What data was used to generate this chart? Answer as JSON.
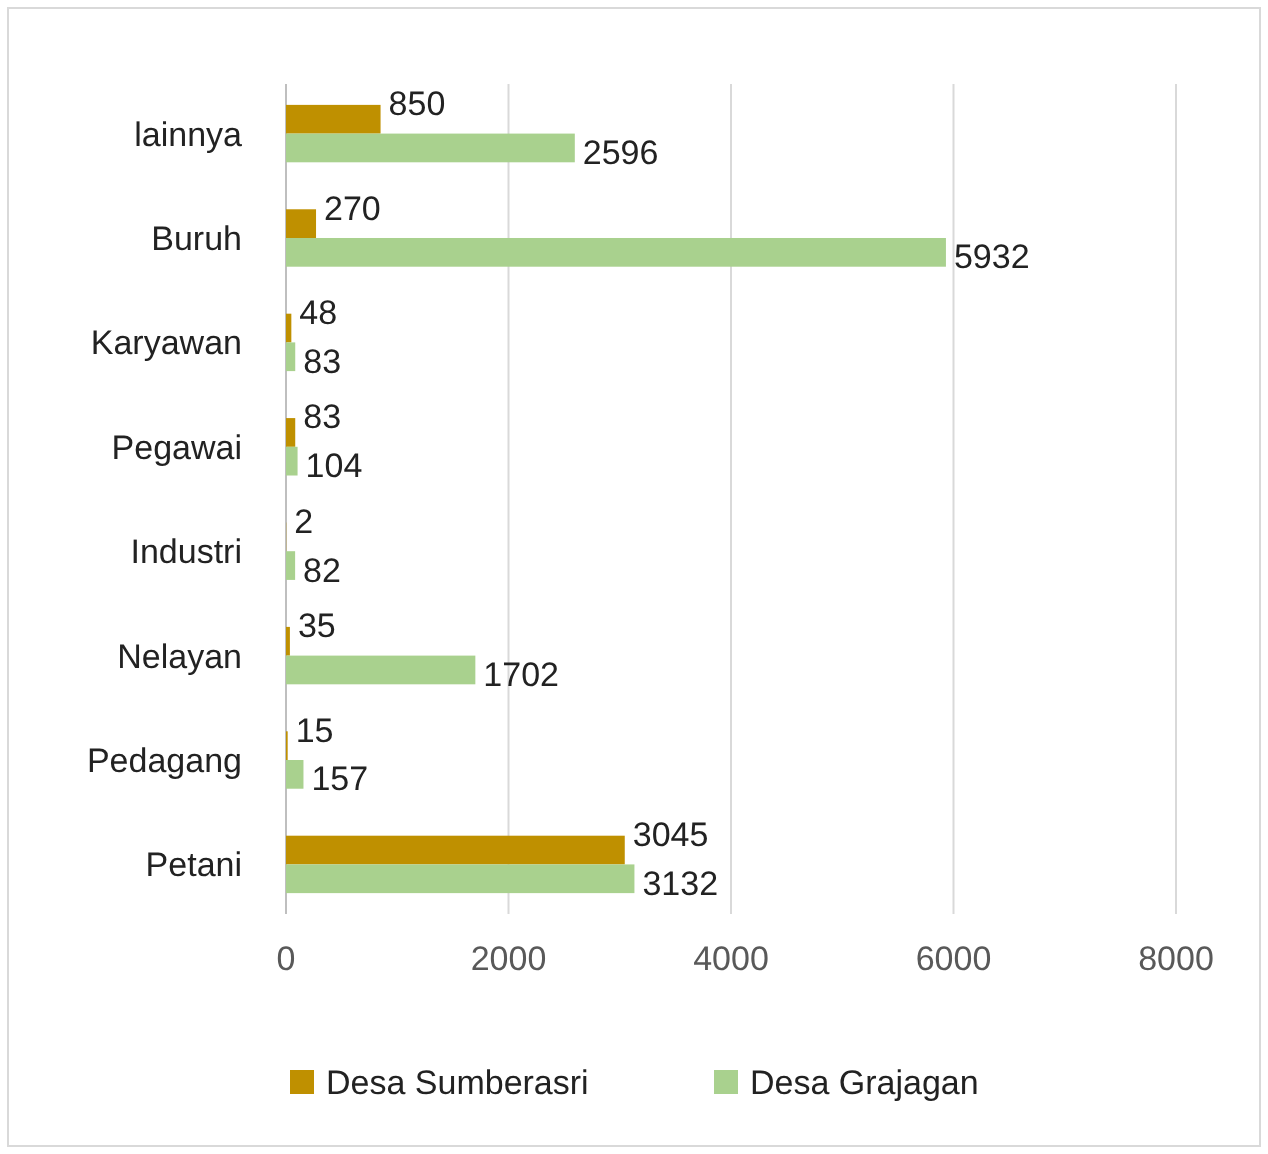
{
  "chart_data": {
    "type": "bar",
    "orientation": "horizontal",
    "categories": [
      "lainnya",
      "Buruh",
      "Karyawan",
      "Pegawai",
      "Industri",
      "Nelayan",
      "Pedagang",
      "Petani"
    ],
    "series": [
      {
        "name": "Desa Sumberasri",
        "color": "#bf9000",
        "values": [
          850,
          270,
          48,
          83,
          2,
          35,
          15,
          3045
        ]
      },
      {
        "name": "Desa Grajagan",
        "color": "#a9d18e",
        "values": [
          2596,
          5932,
          83,
          104,
          82,
          1702,
          157,
          3132
        ]
      }
    ],
    "xlim": [
      0,
      8000
    ],
    "xticks": [
      0,
      2000,
      4000,
      6000,
      8000
    ],
    "grid": "x",
    "legend": "bottom",
    "data_labels": true
  }
}
